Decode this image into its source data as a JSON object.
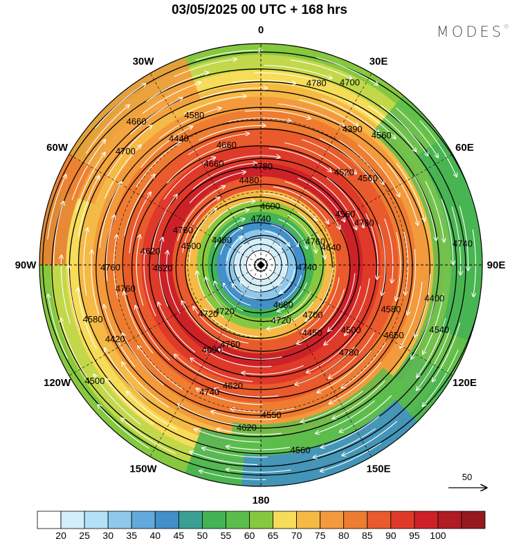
{
  "header": {
    "title": "03/05/2025  00 UTC  + 168 hrs",
    "brand": "MODES",
    "brand_mark": "©"
  },
  "map": {
    "projection": "north-polar-stereographic",
    "longitude_labels": [
      {
        "lon": 0,
        "text": "0"
      },
      {
        "lon": 30,
        "text": "30E"
      },
      {
        "lon": 60,
        "text": "60E"
      },
      {
        "lon": 90,
        "text": "90E"
      },
      {
        "lon": 120,
        "text": "120E"
      },
      {
        "lon": 150,
        "text": "150E"
      },
      {
        "lon": 180,
        "text": "180"
      },
      {
        "lon": -150,
        "text": "150W"
      },
      {
        "lon": -120,
        "text": "120W"
      },
      {
        "lon": -90,
        "text": "90W"
      },
      {
        "lon": -60,
        "text": "60W"
      },
      {
        "lon": -30,
        "text": "30W"
      }
    ],
    "height_contour_labels": [
      "4740",
      "4760",
      "4700",
      "4760",
      "4620",
      "4660",
      "4520",
      "4580",
      "4550",
      "4420",
      "4700",
      "4780",
      "4740",
      "4680",
      "4720",
      "4500",
      "4480",
      "4560",
      "4500",
      "4620",
      "4760",
      "4440",
      "4390",
      "4400",
      "4560",
      "4500",
      "4480",
      "4600",
      "4640",
      "4450",
      "4600",
      "4620",
      "4660",
      "4560",
      "4650",
      "4620",
      "4580",
      "4660",
      "4700",
      "4740",
      "4720",
      "4720",
      "4760",
      "4780",
      "4780",
      "4780",
      "4740",
      "4760",
      "4580",
      "4560",
      "4540"
    ],
    "wind_vector_reference": "50",
    "wind_speed_colors": [
      "#ffffff",
      "#d2eefa",
      "#b4e1f8",
      "#8ec8ea",
      "#63a9dc",
      "#428fc9",
      "#3c9f94",
      "#43b354",
      "#5cbd4b",
      "#86c83f",
      "#c2d84a",
      "#f6dc58",
      "#f5b945",
      "#f39a3c",
      "#ee7c31",
      "#e95a2c",
      "#df3a29",
      "#cc2227",
      "#b01b24",
      "#951a20"
    ]
  },
  "colorbar": {
    "labels": [
      "20",
      "25",
      "30",
      "35",
      "40",
      "45",
      "50",
      "55",
      "60",
      "65",
      "70",
      "75",
      "80",
      "85",
      "90",
      "95",
      "100"
    ],
    "colors": [
      "#ffffff",
      "#d2eefa",
      "#b4e1f8",
      "#8ec8ea",
      "#63a9dc",
      "#428fc9",
      "#3c9f94",
      "#43b354",
      "#5cbd4b",
      "#86c83f",
      "#f6dc58",
      "#f5b945",
      "#f39a3c",
      "#ee7c31",
      "#e95a2c",
      "#df3a29",
      "#cc2227",
      "#b01b24",
      "#951a20"
    ]
  }
}
